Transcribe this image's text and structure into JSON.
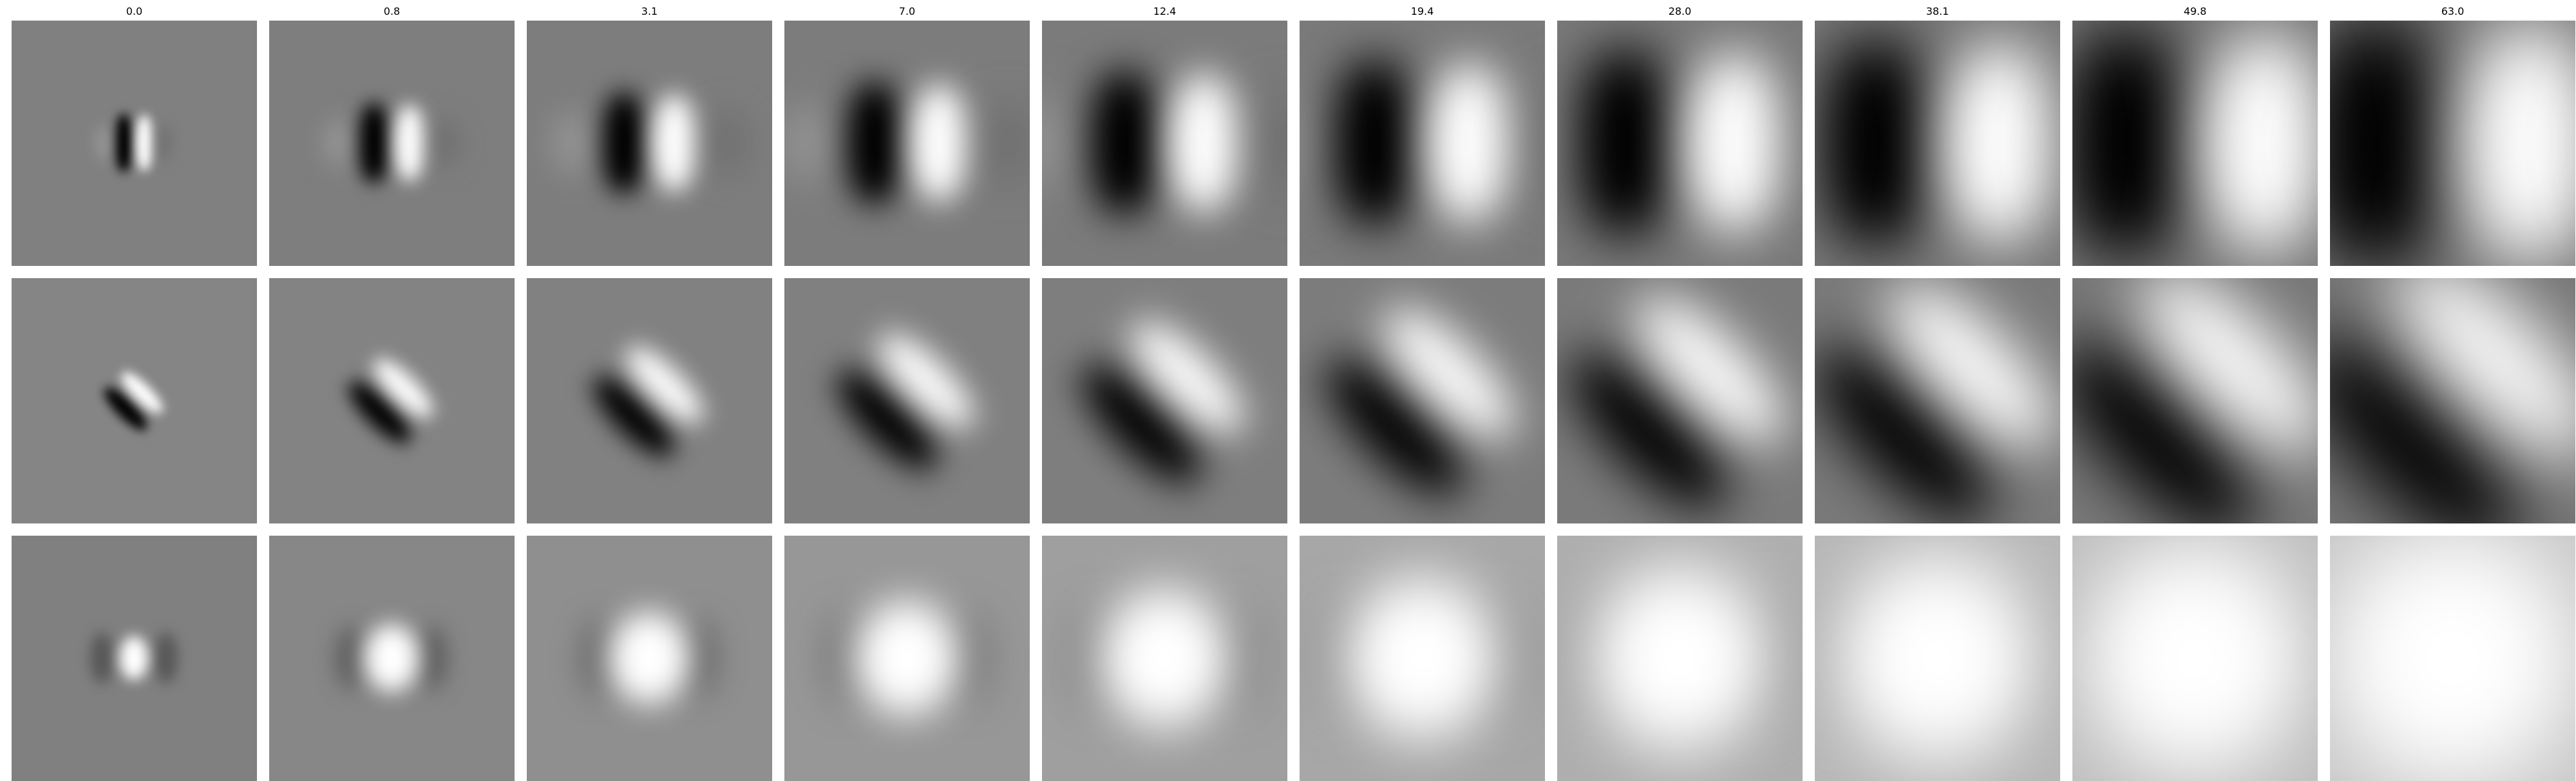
{
  "figure": {
    "column_titles": [
      "0.0",
      "0.8",
      "3.1",
      "7.0",
      "12.4",
      "19.4",
      "28.0",
      "38.1",
      "49.8",
      "63.0"
    ],
    "rows": 3,
    "columns": 10,
    "colormap": "gray",
    "background_color": "#ffffff"
  }
}
